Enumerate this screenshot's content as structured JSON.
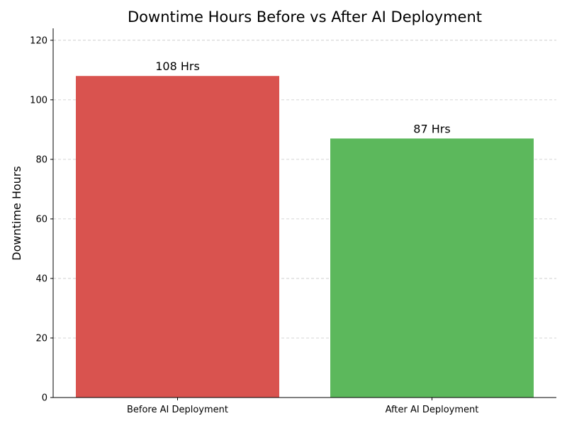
{
  "chart_data": {
    "type": "bar",
    "title": "Downtime Hours Before vs After AI Deployment",
    "xlabel": "",
    "ylabel": "Downtime Hours",
    "categories": [
      "Before AI Deployment",
      "After AI Deployment"
    ],
    "values": [
      108,
      87
    ],
    "data_labels": [
      "108 Hrs",
      "87 Hrs"
    ],
    "colors": [
      "#d9534f",
      "#5cb85c"
    ],
    "ylim": [
      0,
      124
    ],
    "yticks": [
      0,
      20,
      40,
      60,
      80,
      100,
      120
    ],
    "grid": "horizontal dashed",
    "legend": "none"
  }
}
